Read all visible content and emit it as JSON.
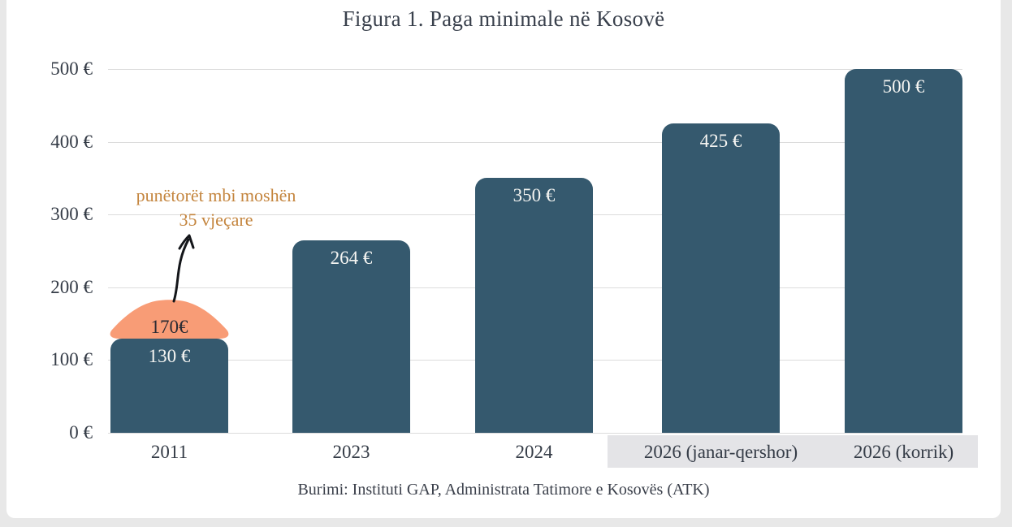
{
  "figure": {
    "title": "Figura 1. Paga minimale në Kosovë",
    "source": "Burimi: Instituti GAP, Administrata Tatimore e Kosovës (ATK)"
  },
  "chart_data": {
    "type": "bar",
    "title": "Figura 1. Paga minimale në Kosovë",
    "categories": [
      "2011",
      "2023",
      "2024",
      "2026 (janar-qershor)",
      "2026 (korrik)"
    ],
    "values": [
      130,
      264,
      350,
      425,
      500
    ],
    "bar_labels": [
      "130 €",
      "264 €",
      "350 €",
      "425 €",
      "500 €"
    ],
    "xlabel": "",
    "ylabel": "",
    "ylim": [
      0,
      500
    ],
    "y_ticks": [
      {
        "value": 0,
        "label": "0 €"
      },
      {
        "value": 100,
        "label": "100 €"
      },
      {
        "value": 200,
        "label": "200 €"
      },
      {
        "value": 300,
        "label": "300 €"
      },
      {
        "value": 400,
        "label": "400 €"
      },
      {
        "value": 500,
        "label": "500 €"
      }
    ],
    "grid": true,
    "legend": false,
    "bar_color": "#35596E",
    "bar_label_color": "#F5F5F2",
    "axis_text_color": "#353C47",
    "gridline_color": "#DCDCDC",
    "highlighted_category_indexes": [
      3,
      4
    ],
    "highlight_color": "#E4E4E7",
    "overlay": {
      "category": "2011",
      "value": 170,
      "label": "170€",
      "color": "#F89C76",
      "note_line1": "punëtorët mbi moshën",
      "note_line2": "35 vjeçare",
      "note_color": "#C4853E"
    },
    "source": "Burimi: Instituti GAP, Administrata Tatimore e Kosovës (ATK)"
  }
}
